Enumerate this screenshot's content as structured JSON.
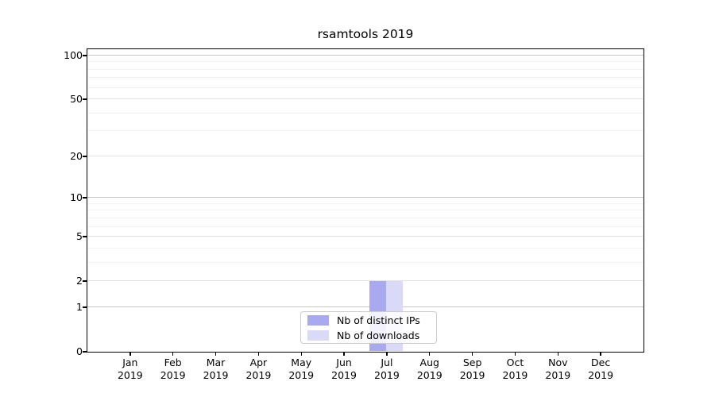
{
  "chart_data": {
    "type": "bar",
    "title": "rsamtools 2019",
    "categories": [
      "Jan 2019",
      "Feb 2019",
      "Mar 2019",
      "Apr 2019",
      "May 2019",
      "Jun 2019",
      "Jul 2019",
      "Aug 2019",
      "Sep 2019",
      "Oct 2019",
      "Nov 2019",
      "Dec 2019"
    ],
    "series": [
      {
        "name": "Nb of distinct IPs",
        "color": "#a9a9f0",
        "values": [
          0,
          0,
          0,
          0,
          0,
          0,
          2,
          0,
          0,
          0,
          0,
          0
        ]
      },
      {
        "name": "Nb of downloads",
        "color": "#dadaf8",
        "values": [
          0,
          0,
          0,
          0,
          0,
          0,
          2,
          0,
          0,
          0,
          0,
          0
        ]
      }
    ],
    "xlabel": "",
    "ylabel": "",
    "yscale": "log1p",
    "ylim": [
      0,
      110.4
    ],
    "xlim": [
      0,
      13
    ],
    "yticks_major": [
      0,
      1,
      2,
      5,
      10,
      20,
      50,
      100
    ],
    "yticks_emphasis": [
      1,
      10,
      100
    ],
    "yticks_minor": [
      3,
      4,
      6,
      7,
      8,
      9,
      30,
      40,
      60,
      70,
      80,
      90
    ],
    "grid": "horizontal",
    "legend_position": "lower center",
    "axis_color": "#000000",
    "grid_colors": {
      "emphasis": "#c6c6c6",
      "major": "#e2e2e2",
      "minor": "#f2f2f2"
    }
  }
}
